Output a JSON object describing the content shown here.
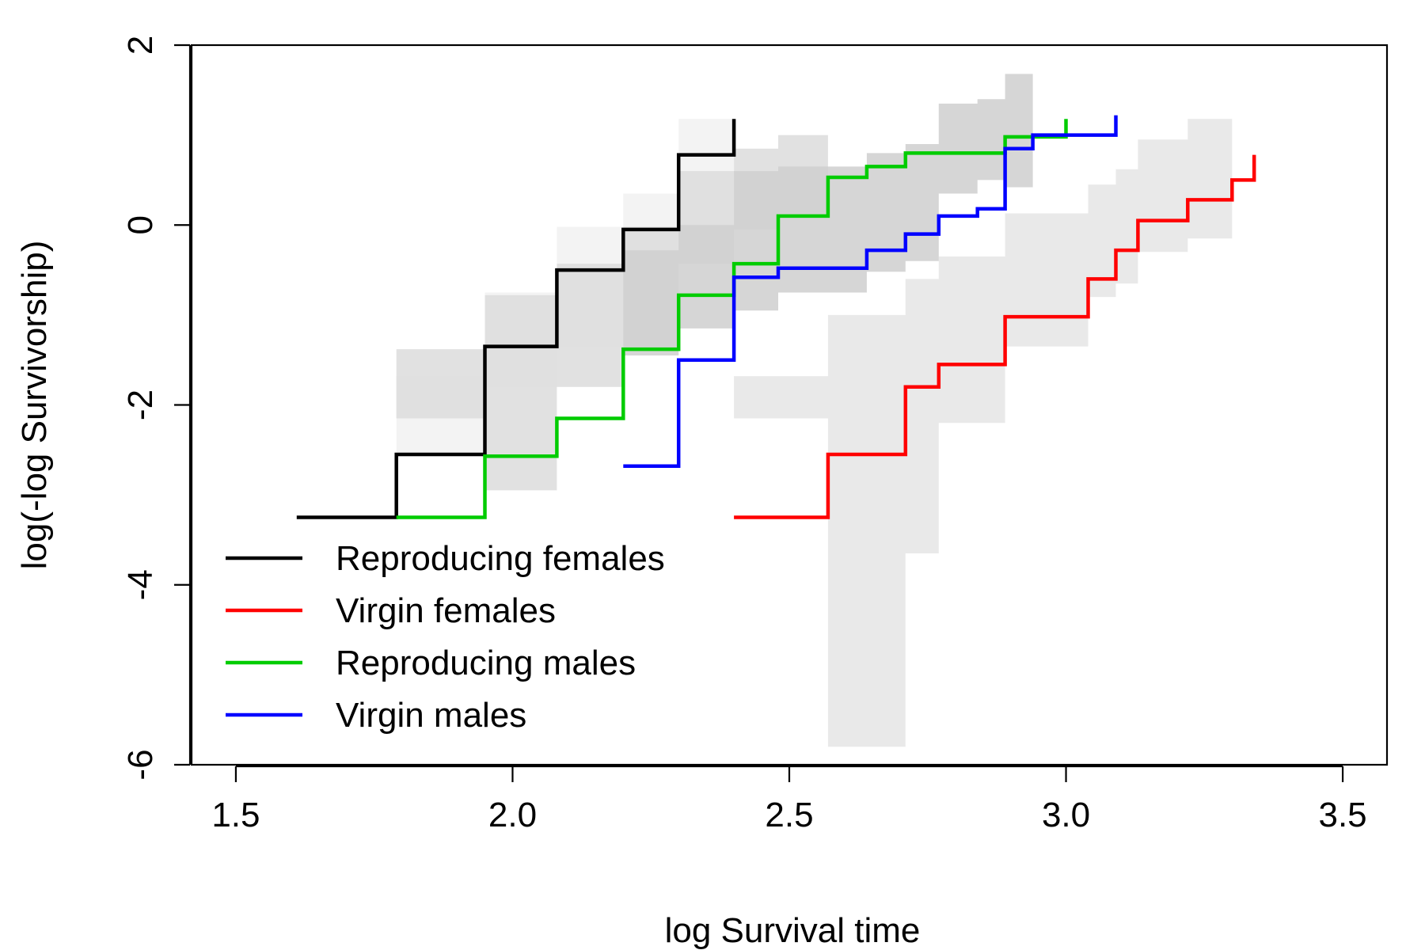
{
  "chart_data": {
    "type": "line",
    "title": "",
    "xlabel": "log Survival time",
    "ylabel": "log(-log Survivorship)",
    "xlim": [
      1.42,
      3.58
    ],
    "ylim": [
      -6.0,
      2.0
    ],
    "xticks": [
      1.5,
      2.0,
      2.5,
      3.0,
      3.5
    ],
    "xtick_labels": [
      "1.5",
      "2.0",
      "2.5",
      "3.0",
      "3.5"
    ],
    "yticks": [
      -6,
      -4,
      -2,
      0,
      2
    ],
    "ytick_labels": [
      "-6",
      "-4",
      "-2",
      "0",
      "2"
    ],
    "grid": false,
    "legend_position": "bottom-left",
    "series": [
      {
        "name": "Reproducing females",
        "color": "#000000",
        "band_color": "#f1f1f1",
        "step_x": [
          1.61,
          1.79,
          1.95,
          2.08,
          2.2,
          2.3,
          2.4
        ],
        "step_y": [
          -3.25,
          -2.55,
          -1.35,
          -0.5,
          -0.05,
          0.78,
          1.18
        ],
        "ci_lower": [
          -2.15,
          -2.55,
          -1.8,
          -1.35,
          -0.8,
          -0.3
        ],
        "ci_upper": [
          -2.15,
          -1.68,
          -0.75,
          -0.02,
          0.35,
          1.18
        ]
      },
      {
        "name": "Virgin females",
        "color": "#ff0000",
        "band_color": "#e5e5e5",
        "step_x": [
          2.4,
          2.57,
          2.71,
          2.77,
          2.89,
          3.04,
          3.09,
          3.13,
          3.22,
          3.3,
          3.34
        ],
        "step_y": [
          -3.25,
          -2.55,
          -1.8,
          -1.55,
          -1.02,
          -0.6,
          -0.28,
          0.05,
          0.28,
          0.5,
          0.78
        ],
        "ci_lower": [
          -2.15,
          -5.8,
          -3.65,
          -2.2,
          -1.35,
          -0.8,
          -0.65,
          -0.3,
          -0.15
        ],
        "ci_upper": [
          -1.68,
          -1.0,
          -0.6,
          -0.35,
          0.13,
          0.45,
          0.62,
          0.95,
          1.18
        ]
      },
      {
        "name": "Reproducing males",
        "color": "#00cc00",
        "band_color": "#dcdcdc",
        "step_x": [
          1.79,
          1.95,
          2.08,
          2.2,
          2.3,
          2.4,
          2.48,
          2.57,
          2.64,
          2.71,
          2.89,
          3.0
        ],
        "step_y": [
          -3.25,
          -2.57,
          -2.15,
          -1.38,
          -0.78,
          -0.43,
          0.1,
          0.53,
          0.65,
          0.8,
          0.98,
          1.18
        ],
        "ci_lower": [
          -2.15,
          -2.95,
          -1.8,
          -1.35,
          -0.43,
          -0.05,
          0.13
        ],
        "ci_upper": [
          -1.38,
          -0.78,
          -0.43,
          -0.02,
          0.6,
          0.85,
          1.0
        ]
      },
      {
        "name": "Virgin males",
        "color": "#0000ff",
        "band_color": "#cfcfcf",
        "step_x": [
          2.2,
          2.3,
          2.4,
          2.48,
          2.64,
          2.71,
          2.77,
          2.84,
          2.89,
          2.94,
          3.09
        ],
        "step_y": [
          -2.68,
          -1.5,
          -0.58,
          -0.48,
          -0.28,
          -0.1,
          0.1,
          0.18,
          0.85,
          1.0,
          1.22
        ],
        "ci_lower": [
          -1.45,
          -1.15,
          -0.95,
          -0.75,
          -0.52,
          -0.4,
          0.35,
          0.5,
          0.42
        ],
        "ci_upper": [
          -0.28,
          0.0,
          0.6,
          0.65,
          0.8,
          0.9,
          1.35,
          1.4,
          1.68
        ]
      }
    ]
  }
}
